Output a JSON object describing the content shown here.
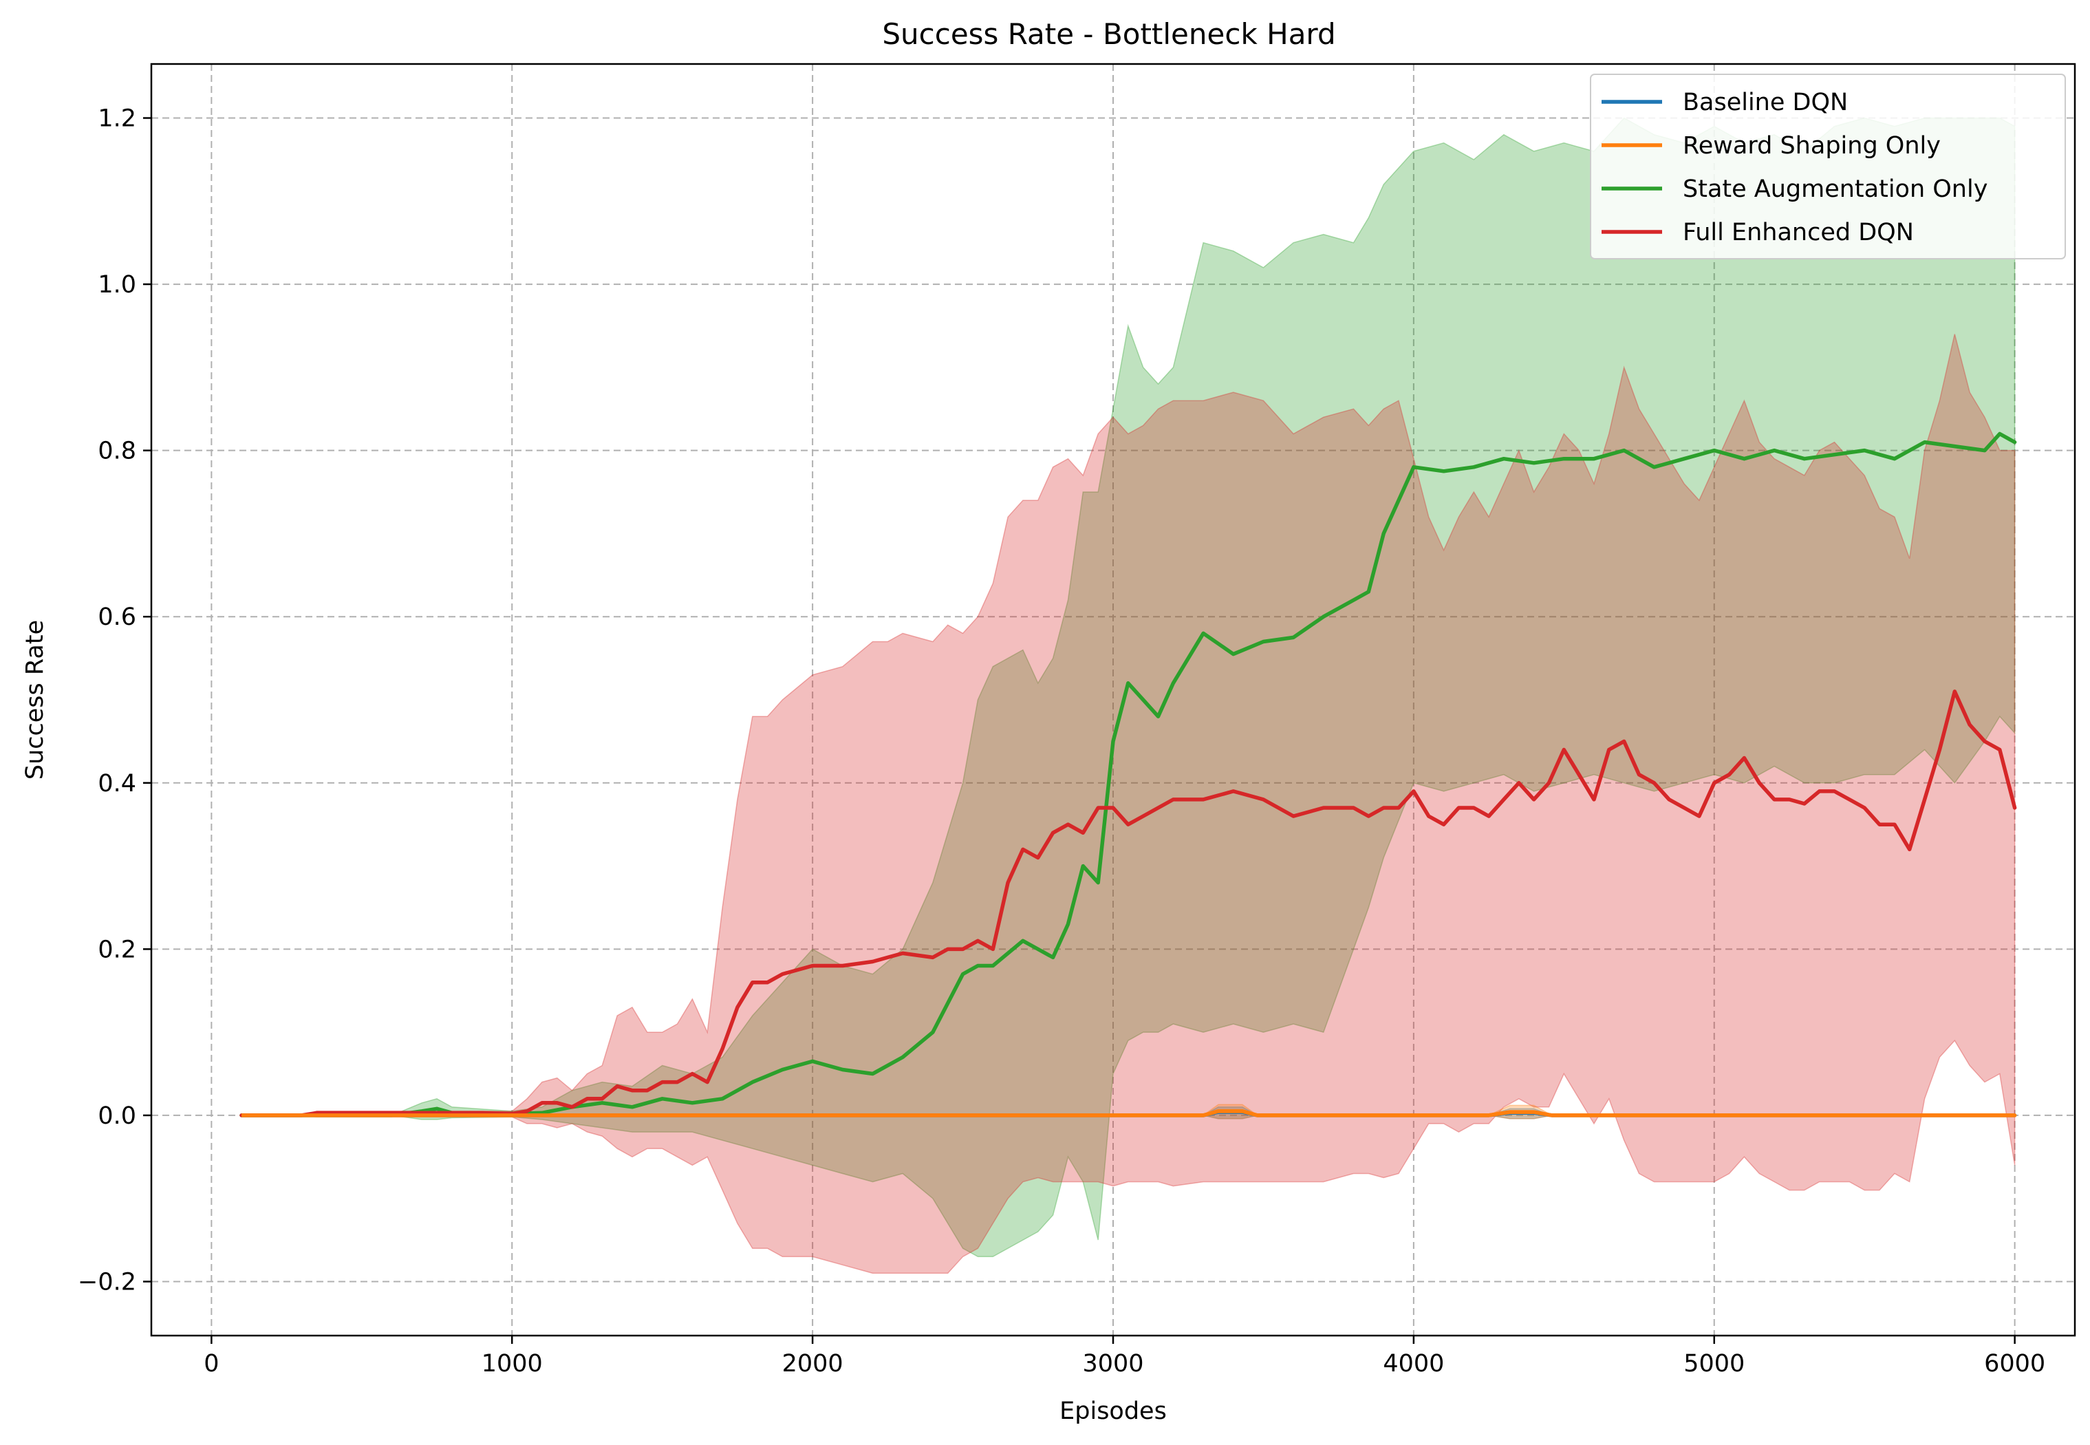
{
  "chart_data": {
    "type": "line",
    "title": "Success Rate - Bottleneck Hard",
    "xlabel": "Episodes",
    "ylabel": "Success Rate",
    "xlim": [
      -200,
      6200
    ],
    "ylim": [
      -0.265,
      1.265
    ],
    "x_ticks": [
      0,
      1000,
      2000,
      3000,
      4000,
      5000,
      6000
    ],
    "x_tick_labels": [
      "0",
      "1000",
      "2000",
      "3000",
      "4000",
      "5000",
      "6000"
    ],
    "y_ticks": [
      -0.2,
      0.0,
      0.2,
      0.4,
      0.6,
      0.8,
      1.0,
      1.2
    ],
    "y_tick_labels": [
      "−0.2",
      "0.0",
      "0.2",
      "0.4",
      "0.6",
      "0.8",
      "1.0",
      "1.2"
    ],
    "grid": true,
    "legend_position": "top-right",
    "series": [
      {
        "name": "Baseline DQN",
        "color": "#1f77b4",
        "x": [
          100,
          3300,
          3350,
          3430,
          3480,
          4250,
          4320,
          4400,
          4460,
          6000
        ],
        "y": [
          0,
          0,
          0.004,
          0.004,
          0,
          0,
          0.003,
          0.003,
          0,
          0
        ],
        "band_upper": [
          0,
          0,
          0.01,
          0.01,
          0,
          0,
          0.008,
          0.008,
          0,
          0
        ],
        "band_lower": [
          0,
          0,
          -0.004,
          -0.004,
          0,
          0,
          -0.004,
          -0.004,
          0,
          0
        ]
      },
      {
        "name": "Reward Shaping Only",
        "color": "#ff7f0e",
        "x": [
          100,
          3300,
          3350,
          3430,
          3480,
          4250,
          4320,
          4400,
          4460,
          6000
        ],
        "y": [
          0,
          0,
          0.005,
          0.005,
          0,
          0,
          0.004,
          0.004,
          0,
          0
        ],
        "band_upper": [
          0,
          0,
          0.013,
          0.013,
          0,
          0,
          0.012,
          0.012,
          0,
          0
        ],
        "band_lower": [
          0,
          0,
          -0.004,
          -0.004,
          0,
          0,
          -0.004,
          -0.004,
          0,
          0
        ]
      },
      {
        "name": "State Augmentation Only",
        "color": "#2ca02c",
        "x": [
          100,
          600,
          700,
          750,
          800,
          1000,
          1100,
          1200,
          1300,
          1400,
          1500,
          1600,
          1700,
          1800,
          1900,
          2000,
          2100,
          2200,
          2300,
          2400,
          2500,
          2550,
          2600,
          2700,
          2750,
          2800,
          2850,
          2900,
          2950,
          3000,
          3050,
          3100,
          3150,
          3200,
          3300,
          3400,
          3500,
          3600,
          3700,
          3800,
          3850,
          3900,
          4000,
          4100,
          4200,
          4300,
          4400,
          4500,
          4600,
          4700,
          4800,
          4900,
          5000,
          5100,
          5200,
          5300,
          5400,
          5500,
          5600,
          5700,
          5800,
          5900,
          5950,
          6000
        ],
        "y": [
          0,
          0,
          0.005,
          0.008,
          0.003,
          0.002,
          0.003,
          0.01,
          0.015,
          0.01,
          0.02,
          0.015,
          0.02,
          0.04,
          0.055,
          0.065,
          0.055,
          0.05,
          0.07,
          0.1,
          0.17,
          0.18,
          0.18,
          0.21,
          0.2,
          0.19,
          0.23,
          0.3,
          0.28,
          0.45,
          0.52,
          0.5,
          0.48,
          0.52,
          0.58,
          0.555,
          0.57,
          0.575,
          0.6,
          0.62,
          0.63,
          0.7,
          0.78,
          0.775,
          0.78,
          0.79,
          0.785,
          0.79,
          0.79,
          0.8,
          0.78,
          0.79,
          0.8,
          0.79,
          0.8,
          0.79,
          0.795,
          0.8,
          0.79,
          0.81,
          0.805,
          0.8,
          0.82,
          0.81
        ],
        "band_upper": [
          0,
          0,
          0.015,
          0.02,
          0.01,
          0.005,
          0.01,
          0.03,
          0.04,
          0.035,
          0.06,
          0.05,
          0.07,
          0.12,
          0.16,
          0.2,
          0.18,
          0.17,
          0.2,
          0.28,
          0.4,
          0.5,
          0.54,
          0.56,
          0.52,
          0.55,
          0.62,
          0.75,
          0.75,
          0.85,
          0.95,
          0.9,
          0.88,
          0.9,
          1.05,
          1.04,
          1.02,
          1.05,
          1.06,
          1.05,
          1.08,
          1.12,
          1.16,
          1.17,
          1.15,
          1.18,
          1.16,
          1.17,
          1.16,
          1.2,
          1.18,
          1.17,
          1.19,
          1.17,
          1.18,
          1.16,
          1.19,
          1.2,
          1.19,
          1.2,
          1.2,
          1.2,
          1.2,
          1.19
        ],
        "band_lower": [
          0,
          0,
          -0.005,
          -0.005,
          -0.003,
          -0.002,
          -0.005,
          -0.01,
          -0.015,
          -0.02,
          -0.02,
          -0.02,
          -0.03,
          -0.04,
          -0.05,
          -0.06,
          -0.07,
          -0.08,
          -0.07,
          -0.1,
          -0.16,
          -0.17,
          -0.17,
          -0.15,
          -0.14,
          -0.12,
          -0.05,
          -0.08,
          -0.15,
          0.05,
          0.09,
          0.1,
          0.1,
          0.11,
          0.1,
          0.11,
          0.1,
          0.11,
          0.1,
          0.2,
          0.25,
          0.31,
          0.4,
          0.39,
          0.4,
          0.41,
          0.39,
          0.4,
          0.41,
          0.4,
          0.39,
          0.4,
          0.41,
          0.4,
          0.42,
          0.4,
          0.4,
          0.41,
          0.41,
          0.44,
          0.4,
          0.45,
          0.48,
          0.46
        ]
      },
      {
        "name": "Full Enhanced DQN",
        "color": "#d62728",
        "x": [
          100,
          300,
          350,
          900,
          1000,
          1050,
          1100,
          1150,
          1200,
          1250,
          1300,
          1350,
          1400,
          1450,
          1500,
          1550,
          1600,
          1650,
          1700,
          1750,
          1800,
          1850,
          1900,
          2000,
          2100,
          2200,
          2250,
          2300,
          2400,
          2450,
          2500,
          2550,
          2600,
          2650,
          2700,
          2750,
          2800,
          2850,
          2900,
          2950,
          3000,
          3050,
          3100,
          3150,
          3200,
          3300,
          3400,
          3500,
          3600,
          3700,
          3800,
          3850,
          3900,
          3950,
          4000,
          4050,
          4100,
          4150,
          4200,
          4250,
          4300,
          4350,
          4400,
          4450,
          4500,
          4550,
          4600,
          4650,
          4700,
          4750,
          4800,
          4850,
          4900,
          4950,
          5000,
          5050,
          5100,
          5150,
          5200,
          5250,
          5300,
          5350,
          5400,
          5450,
          5500,
          5550,
          5600,
          5650,
          5700,
          5750,
          5800,
          5850,
          5900,
          5950,
          6000
        ],
        "y": [
          0,
          0,
          0.003,
          0.003,
          0.002,
          0.005,
          0.015,
          0.015,
          0.01,
          0.02,
          0.02,
          0.035,
          0.03,
          0.03,
          0.04,
          0.04,
          0.05,
          0.04,
          0.08,
          0.13,
          0.16,
          0.16,
          0.17,
          0.18,
          0.18,
          0.185,
          0.19,
          0.195,
          0.19,
          0.2,
          0.2,
          0.21,
          0.2,
          0.28,
          0.32,
          0.31,
          0.34,
          0.35,
          0.34,
          0.37,
          0.37,
          0.35,
          0.36,
          0.37,
          0.38,
          0.38,
          0.39,
          0.38,
          0.36,
          0.37,
          0.37,
          0.36,
          0.37,
          0.37,
          0.39,
          0.36,
          0.35,
          0.37,
          0.37,
          0.36,
          0.38,
          0.4,
          0.38,
          0.4,
          0.44,
          0.41,
          0.38,
          0.44,
          0.45,
          0.41,
          0.4,
          0.38,
          0.37,
          0.36,
          0.4,
          0.41,
          0.43,
          0.4,
          0.38,
          0.38,
          0.375,
          0.39,
          0.39,
          0.38,
          0.37,
          0.35,
          0.35,
          0.32,
          0.38,
          0.44,
          0.51,
          0.47,
          0.45,
          0.44,
          0.37
        ],
        "band_upper": [
          0,
          0,
          0.005,
          0.005,
          0.005,
          0.02,
          0.04,
          0.045,
          0.03,
          0.05,
          0.06,
          0.12,
          0.13,
          0.1,
          0.1,
          0.11,
          0.14,
          0.1,
          0.25,
          0.38,
          0.48,
          0.48,
          0.5,
          0.53,
          0.54,
          0.57,
          0.57,
          0.58,
          0.57,
          0.59,
          0.58,
          0.6,
          0.64,
          0.72,
          0.74,
          0.74,
          0.78,
          0.79,
          0.77,
          0.82,
          0.84,
          0.82,
          0.83,
          0.85,
          0.86,
          0.86,
          0.87,
          0.86,
          0.82,
          0.84,
          0.85,
          0.83,
          0.85,
          0.86,
          0.79,
          0.72,
          0.68,
          0.72,
          0.75,
          0.72,
          0.76,
          0.8,
          0.75,
          0.78,
          0.82,
          0.8,
          0.76,
          0.82,
          0.9,
          0.85,
          0.82,
          0.79,
          0.76,
          0.74,
          0.78,
          0.82,
          0.86,
          0.81,
          0.79,
          0.78,
          0.77,
          0.8,
          0.81,
          0.79,
          0.77,
          0.73,
          0.72,
          0.67,
          0.8,
          0.86,
          0.94,
          0.87,
          0.84,
          0.8,
          0.8
        ],
        "band_lower": [
          0,
          0,
          -0.002,
          -0.002,
          -0.002,
          -0.01,
          -0.01,
          -0.015,
          -0.01,
          -0.02,
          -0.025,
          -0.04,
          -0.05,
          -0.04,
          -0.04,
          -0.05,
          -0.06,
          -0.05,
          -0.09,
          -0.13,
          -0.16,
          -0.16,
          -0.17,
          -0.17,
          -0.18,
          -0.19,
          -0.19,
          -0.19,
          -0.19,
          -0.19,
          -0.17,
          -0.16,
          -0.13,
          -0.1,
          -0.08,
          -0.075,
          -0.08,
          -0.08,
          -0.08,
          -0.08,
          -0.085,
          -0.08,
          -0.08,
          -0.08,
          -0.085,
          -0.08,
          -0.08,
          -0.08,
          -0.08,
          -0.08,
          -0.07,
          -0.07,
          -0.075,
          -0.07,
          -0.04,
          -0.01,
          -0.01,
          -0.02,
          -0.01,
          -0.01,
          0.01,
          0.02,
          0.01,
          0.01,
          0.05,
          0.02,
          -0.01,
          0.02,
          -0.03,
          -0.07,
          -0.08,
          -0.08,
          -0.08,
          -0.08,
          -0.08,
          -0.07,
          -0.05,
          -0.07,
          -0.08,
          -0.09,
          -0.09,
          -0.08,
          -0.08,
          -0.08,
          -0.09,
          -0.09,
          -0.07,
          -0.08,
          0.02,
          0.07,
          0.09,
          0.06,
          0.04,
          0.05,
          -0.06
        ]
      }
    ]
  }
}
